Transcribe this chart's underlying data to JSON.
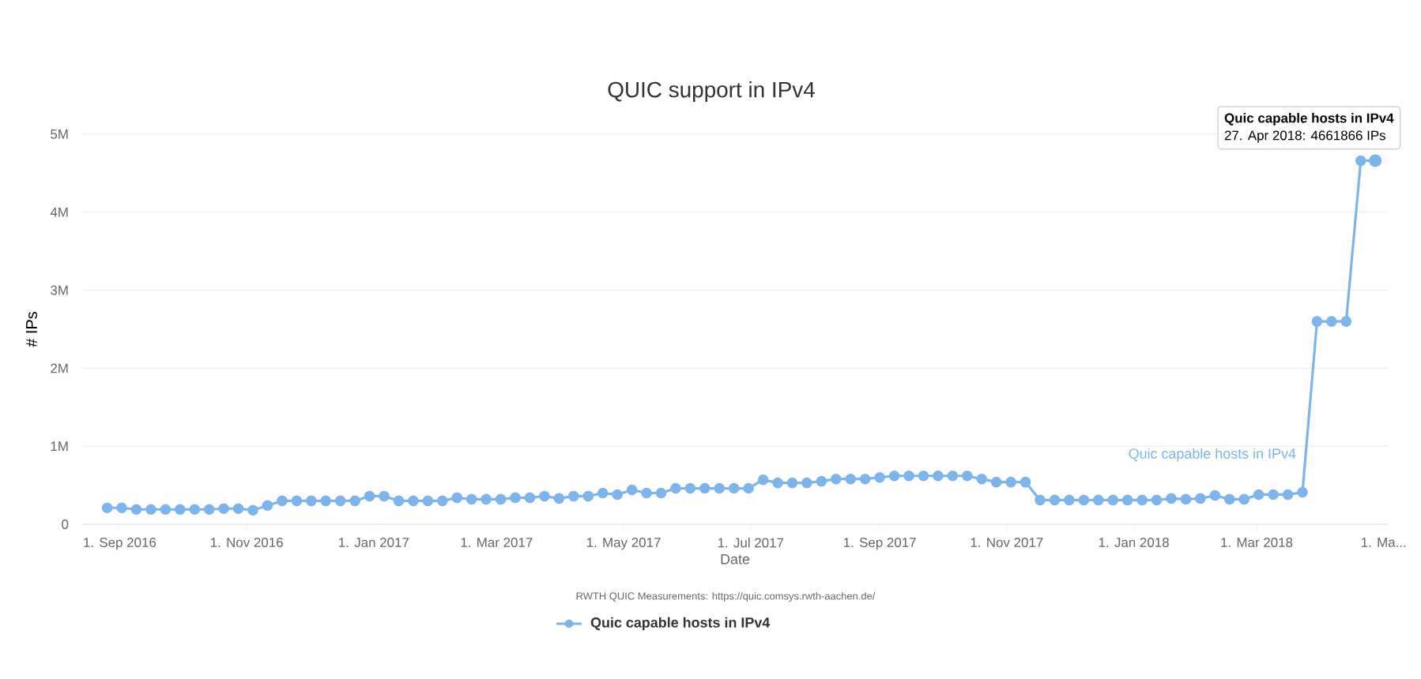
{
  "chart_data": {
    "type": "line",
    "title": "QUIC support in IPv4",
    "xlabel": "Date",
    "ylabel": "# IPs",
    "x": [
      "2016-08-26",
      "2016-09-02",
      "2016-09-09",
      "2016-09-16",
      "2016-09-23",
      "2016-09-30",
      "2016-10-07",
      "2016-10-14",
      "2016-10-21",
      "2016-10-28",
      "2016-11-04",
      "2016-11-11",
      "2016-11-18",
      "2016-11-25",
      "2016-12-02",
      "2016-12-09",
      "2016-12-16",
      "2016-12-23",
      "2016-12-30",
      "2017-01-06",
      "2017-01-13",
      "2017-01-20",
      "2017-01-27",
      "2017-02-03",
      "2017-02-10",
      "2017-02-17",
      "2017-02-24",
      "2017-03-03",
      "2017-03-10",
      "2017-03-17",
      "2017-03-24",
      "2017-03-31",
      "2017-04-07",
      "2017-04-14",
      "2017-04-21",
      "2017-04-28",
      "2017-05-05",
      "2017-05-12",
      "2017-05-19",
      "2017-05-26",
      "2017-06-02",
      "2017-06-09",
      "2017-06-16",
      "2017-06-23",
      "2017-06-30",
      "2017-07-07",
      "2017-07-14",
      "2017-07-21",
      "2017-07-28",
      "2017-08-04",
      "2017-08-11",
      "2017-08-18",
      "2017-08-25",
      "2017-09-01",
      "2017-09-08",
      "2017-09-15",
      "2017-09-22",
      "2017-09-29",
      "2017-10-06",
      "2017-10-13",
      "2017-10-20",
      "2017-10-27",
      "2017-11-03",
      "2017-11-10",
      "2017-11-17",
      "2017-11-24",
      "2017-12-01",
      "2017-12-08",
      "2017-12-15",
      "2017-12-22",
      "2017-12-29",
      "2018-01-05",
      "2018-01-12",
      "2018-01-19",
      "2018-01-26",
      "2018-02-02",
      "2018-02-09",
      "2018-02-16",
      "2018-02-23",
      "2018-03-02",
      "2018-03-09",
      "2018-03-16",
      "2018-03-23",
      "2018-03-30",
      "2018-04-06",
      "2018-04-13",
      "2018-04-20",
      "2018-04-27"
    ],
    "series": [
      {
        "name": "Quic capable hosts in IPv4",
        "color": "#7cb5ec",
        "values": [
          210000,
          210000,
          190000,
          190000,
          190000,
          190000,
          190000,
          190000,
          200000,
          200000,
          180000,
          240000,
          300000,
          300000,
          300000,
          300000,
          300000,
          300000,
          360000,
          360000,
          300000,
          300000,
          300000,
          300000,
          340000,
          320000,
          320000,
          320000,
          340000,
          340000,
          360000,
          330000,
          360000,
          360000,
          400000,
          380000,
          440000,
          400000,
          400000,
          460000,
          460000,
          460000,
          460000,
          460000,
          460000,
          570000,
          530000,
          530000,
          530000,
          550000,
          580000,
          580000,
          580000,
          600000,
          620000,
          620000,
          620000,
          620000,
          620000,
          620000,
          580000,
          540000,
          540000,
          540000,
          310000,
          310000,
          310000,
          310000,
          310000,
          310000,
          310000,
          310000,
          310000,
          330000,
          320000,
          330000,
          370000,
          320000,
          320000,
          380000,
          380000,
          380000,
          410000,
          2600000,
          2600000,
          2600000,
          4660000,
          4661866
        ]
      }
    ],
    "xlim": [
      "2016-08-14",
      "2018-05-03"
    ],
    "xticks": [
      {
        "value": "2016-09-01",
        "label": "1. Sep 2016"
      },
      {
        "value": "2016-11-01",
        "label": "1. Nov 2016"
      },
      {
        "value": "2017-01-01",
        "label": "1. Jan 2017"
      },
      {
        "value": "2017-03-01",
        "label": "1. Mar 2017"
      },
      {
        "value": "2017-05-01",
        "label": "1. May 2017"
      },
      {
        "value": "2017-07-01",
        "label": "1. Jul 2017"
      },
      {
        "value": "2017-09-01",
        "label": "1. Sep 2017"
      },
      {
        "value": "2017-11-01",
        "label": "1. Nov 2017"
      },
      {
        "value": "2018-01-01",
        "label": "1. Jan 2018"
      },
      {
        "value": "2018-03-01",
        "label": "1. Mar 2018"
      },
      {
        "value": "2018-05-01",
        "label": "1. Ma..."
      }
    ],
    "ylim": [
      0,
      5000000
    ],
    "yticks": [
      0,
      {
        "value": 1000000,
        "label": "1M"
      },
      {
        "value": 2000000,
        "label": "2M"
      },
      {
        "value": 3000000,
        "label": "3M"
      },
      {
        "value": 4000000,
        "label": "4M"
      },
      {
        "value": 5000000,
        "label": "5M"
      }
    ],
    "grid": "y",
    "marker": "circle",
    "line_style": "solid",
    "legend": "bottom",
    "annotations": [
      {
        "text": "Quic capable hosts in IPv4",
        "x": "2018-04-27",
        "y": 4661866
      },
      {
        "text": "27. Apr 2018: 4661866 IPs",
        "x": "2018-04-27",
        "y": 4661866
      },
      "RWTH QUIC Measurements: https://quic.comsys.rwth-aachen.de/"
    ]
  }
}
